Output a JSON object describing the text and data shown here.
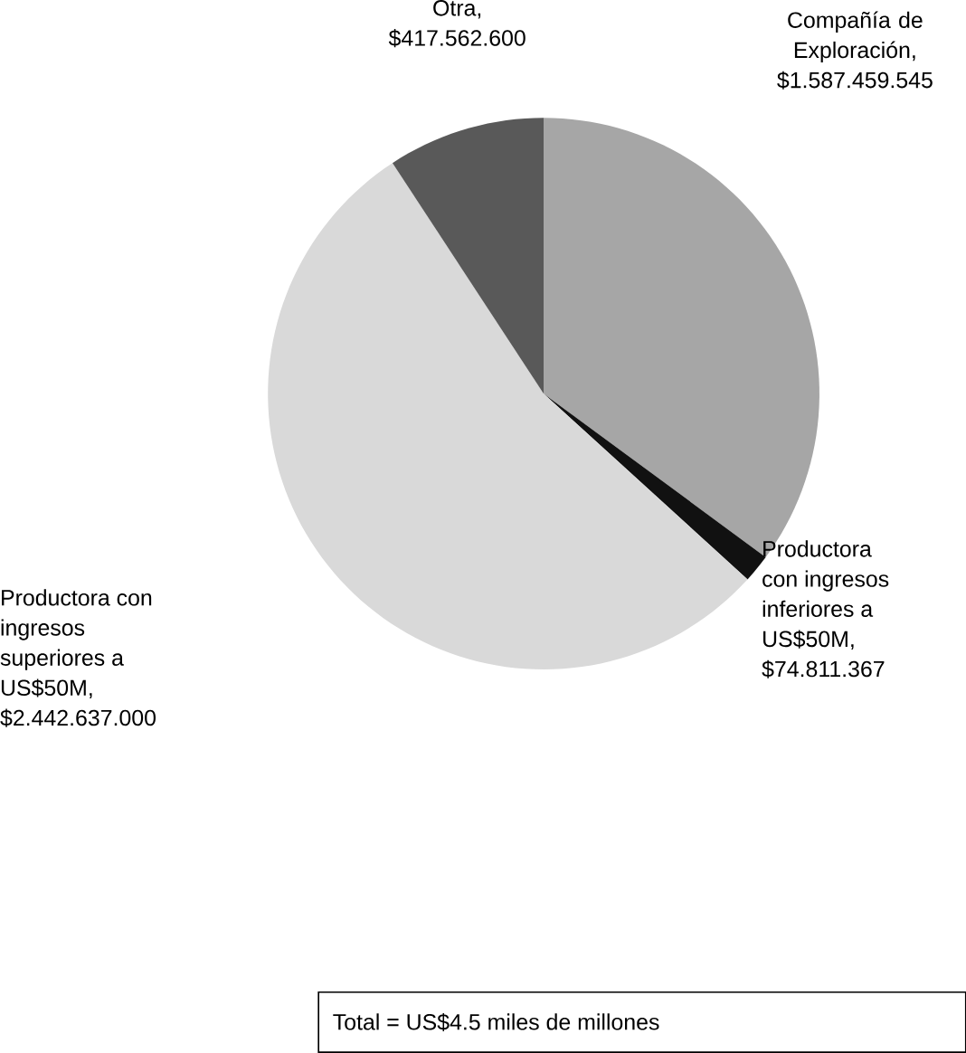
{
  "chart_data": {
    "type": "pie",
    "categories": [
      "Compañía de Exploración",
      "Productora con ingresos inferiores a US$50M",
      "Productora con ingresos superiores a US$50M",
      "Otra"
    ],
    "values": [
      1587459545,
      74811367,
      2442637000,
      417562600
    ],
    "value_labels": [
      ", $1.587.459.545",
      ", $74.811.367",
      ", $2.442.637.000",
      ", $417.562.600"
    ],
    "colors": [
      "#a6a6a6",
      "#111111",
      "#d9d9d9",
      "#595959"
    ],
    "annotations": [
      "Total = US$4.5 miles de millones"
    ]
  }
}
